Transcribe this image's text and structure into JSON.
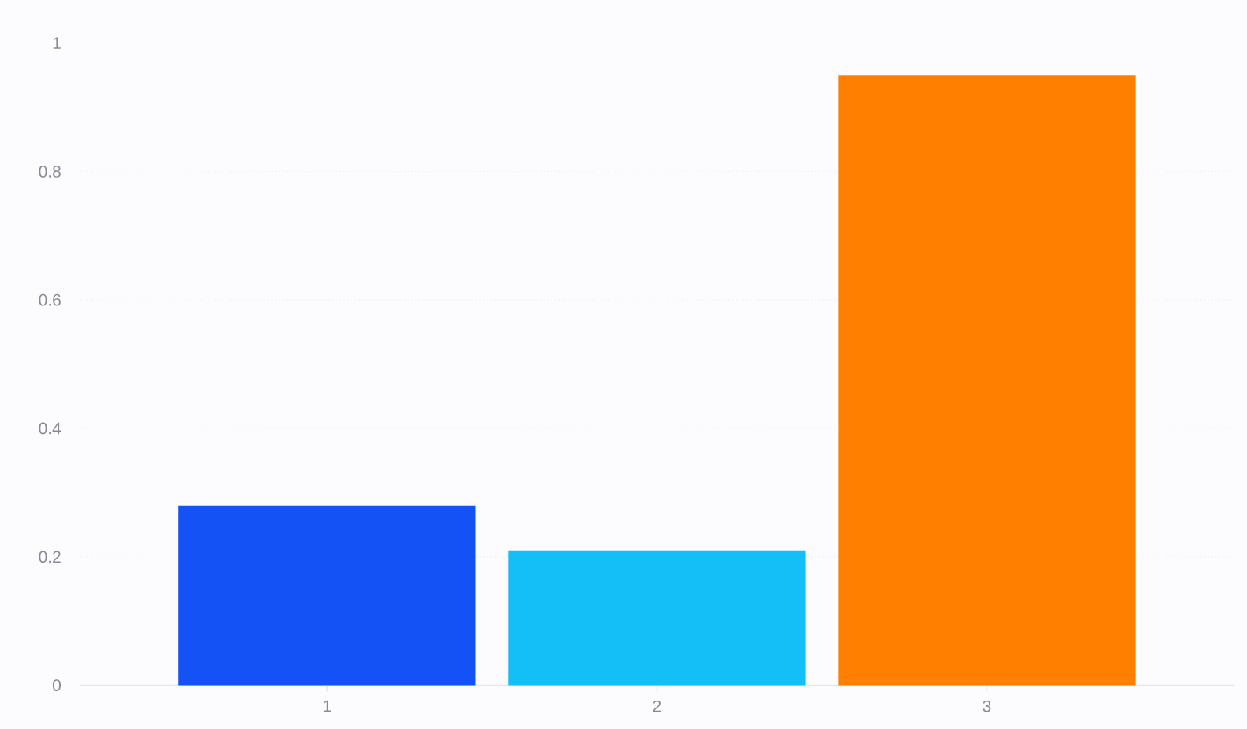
{
  "chart_data": {
    "type": "bar",
    "categories": [
      "1",
      "2",
      "3"
    ],
    "values": [
      0.28,
      0.21,
      0.95
    ],
    "colors": [
      "#1452f5",
      "#14bff7",
      "#ff8000"
    ],
    "ylim": [
      0,
      1
    ],
    "yticks": [
      0,
      0.2,
      0.4,
      0.6,
      0.8,
      1
    ],
    "grid": "y"
  }
}
